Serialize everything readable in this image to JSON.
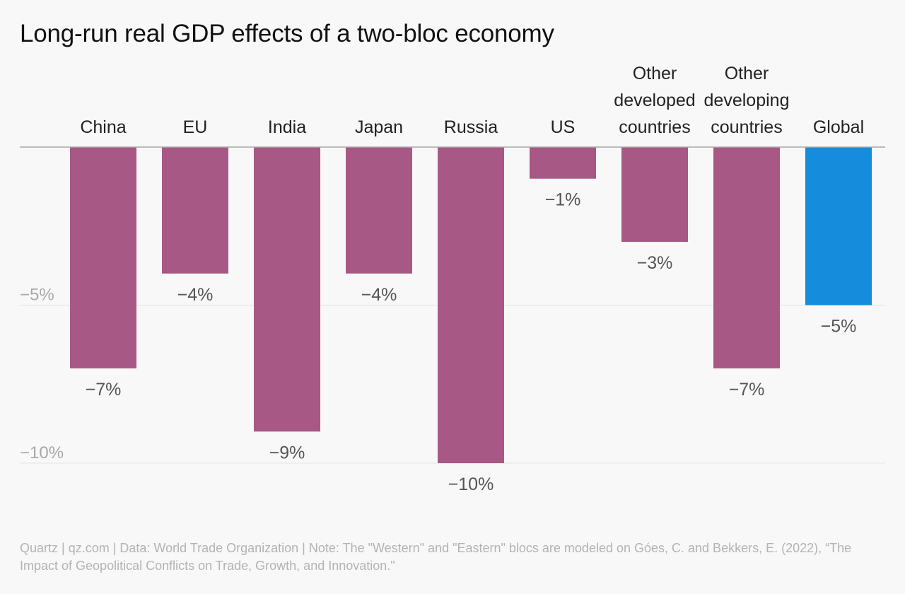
{
  "title": "Long-run real GDP effects of a two-bloc economy",
  "source": "Quartz | qz.com | Data: World Trade Organization | Note: The \"Western\" and \"Eastern\" blocs are modeled on Góes, C. and Bekkers, E. (2022), “The Impact of Geopolitical Conflicts on Trade, Growth, and Innovation.\"",
  "colors": {
    "bar_default": "#a85884",
    "bar_highlight": "#168ddc",
    "gridline": "#e3e3e3",
    "zero_line": "#a8a8a8",
    "axis_label": "#a8a8a8",
    "value_label": "#555555",
    "category_label": "#222222"
  },
  "chart_data": {
    "type": "bar",
    "title": "Long-run real GDP effects of a two-bloc economy",
    "categories": [
      [
        "China"
      ],
      [
        "EU"
      ],
      [
        "India"
      ],
      [
        "Japan"
      ],
      [
        "Russia"
      ],
      [
        "US"
      ],
      [
        "Other",
        "developed",
        "countries"
      ],
      [
        "Other",
        "developing",
        "countries"
      ],
      [
        "Global"
      ]
    ],
    "values": [
      -7,
      -4,
      -9,
      -4,
      -10,
      -1,
      -3,
      -7,
      -5
    ],
    "value_labels": [
      "−7%",
      "−4%",
      "−9%",
      "−4%",
      "−10%",
      "−1%",
      "−3%",
      "−7%",
      "−5%"
    ],
    "highlight": [
      false,
      false,
      false,
      false,
      false,
      false,
      false,
      false,
      true
    ],
    "ylim": [
      -10,
      0
    ],
    "yticks": [
      -5,
      -10
    ],
    "ytick_labels": [
      "−5%",
      "−10%"
    ],
    "grid": true,
    "xlabel": "",
    "ylabel": ""
  }
}
